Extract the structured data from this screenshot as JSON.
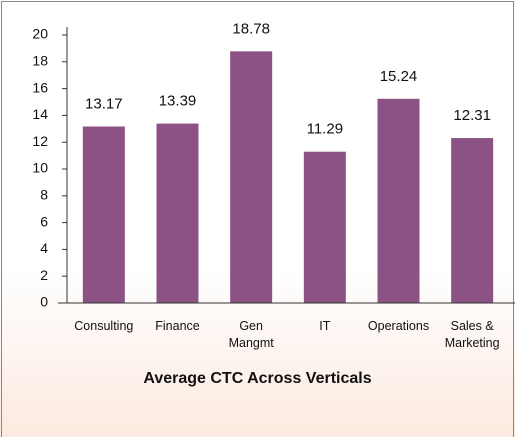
{
  "chart_data": {
    "type": "bar",
    "title": "Average CTC Across Verticals",
    "categories": [
      "Consulting",
      "Finance",
      "Gen Mangmt",
      "IT",
      "Operations",
      "Sales & Marketing"
    ],
    "values": [
      13.17,
      13.39,
      18.78,
      11.29,
      15.24,
      12.31
    ],
    "color": "#8b5283",
    "ylim": [
      0,
      20
    ],
    "yticks": [
      0,
      2,
      4,
      6,
      8,
      10,
      12,
      14,
      16,
      18,
      20
    ],
    "grid": false
  }
}
